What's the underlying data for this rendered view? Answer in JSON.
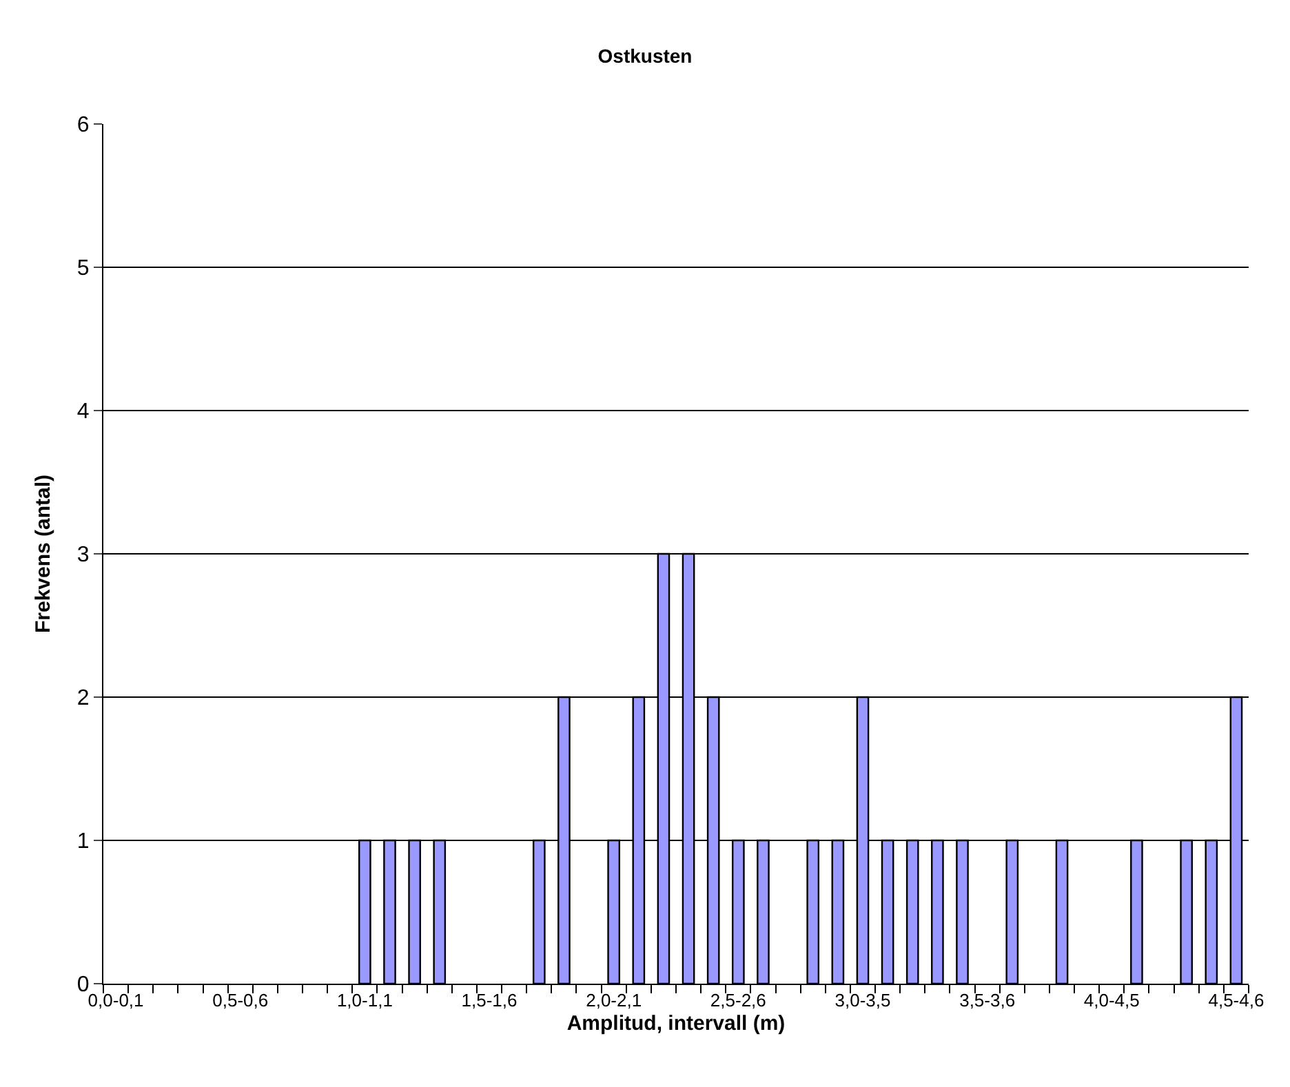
{
  "chart_data": {
    "type": "bar",
    "title": "Ostkusten",
    "xlabel": "Amplitud, intervall (m)",
    "ylabel": "Frekvens (antal)",
    "categories": [
      "0,0-0,1",
      null,
      null,
      null,
      null,
      "0,5-0,6",
      null,
      null,
      null,
      null,
      "1,0-1,1",
      null,
      null,
      null,
      null,
      "1,5-1,6",
      null,
      null,
      null,
      null,
      "2,0-2,1",
      null,
      null,
      null,
      null,
      "2,5-2,6",
      null,
      null,
      null,
      null,
      "3,0-3,5",
      null,
      null,
      null,
      null,
      "3,5-3,6",
      null,
      null,
      null,
      null,
      "4,0-4,5",
      null,
      null,
      null,
      null,
      "4,5-4,6"
    ],
    "values": [
      0,
      0,
      0,
      0,
      0,
      0,
      0,
      0,
      0,
      0,
      1,
      1,
      1,
      1,
      0,
      0,
      0,
      1,
      2,
      0,
      1,
      2,
      3,
      3,
      2,
      1,
      1,
      0,
      1,
      1,
      2,
      1,
      1,
      1,
      1,
      0,
      1,
      0,
      1,
      0,
      0,
      1,
      0,
      1,
      1,
      2
    ],
    "color": "#9999ff",
    "ylim": [
      0,
      6
    ],
    "yticks": [
      0,
      1,
      2,
      3,
      4,
      5,
      6
    ],
    "grid": "y",
    "legend": false
  }
}
